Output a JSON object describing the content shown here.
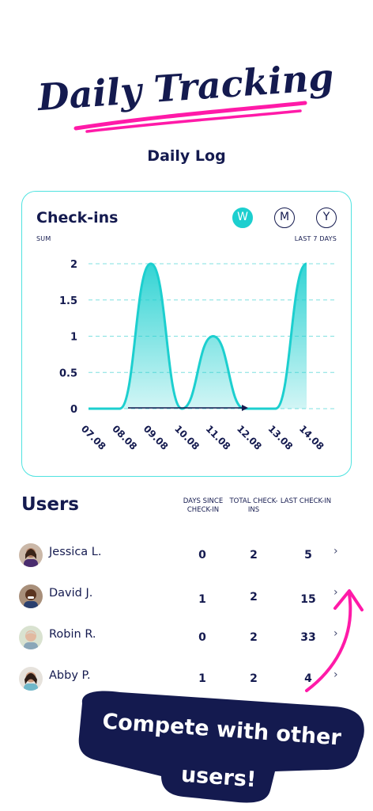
{
  "headline": "Daily Tracking",
  "subtitle": "Daily Log",
  "chart_card": {
    "title": "Check-ins",
    "periods": [
      "W",
      "M",
      "Y"
    ],
    "active_period": "W",
    "left_caption": "SUM",
    "right_caption": "LAST 7 DAYS"
  },
  "chart_data": {
    "type": "area",
    "x": [
      "07.08",
      "08.08",
      "09.08",
      "10.08",
      "11.08",
      "12.08",
      "13.08",
      "14.08"
    ],
    "y": [
      0,
      0,
      2,
      0,
      1,
      0,
      0,
      2
    ],
    "y_ticks": [
      "0",
      "0.5",
      "1",
      "1.5",
      "2"
    ],
    "ylim": [
      0,
      2
    ],
    "grid": "dashed horizontal",
    "colors": {
      "line": "#1ccfcf",
      "fill": "#8ee6e6",
      "grid": "#7fe0e0",
      "arrow": "#141a4f"
    }
  },
  "users": {
    "title": "Users",
    "columns": [
      "DAYS SINCE CHECK-IN",
      "TOTAL CHECK-INS",
      "LAST CHECK-IN"
    ],
    "rows": [
      {
        "name": "Jessica L.",
        "days_since": "0",
        "total": "2",
        "last": "5"
      },
      {
        "name": "David J.",
        "days_since": "1",
        "total": "2",
        "last": "15"
      },
      {
        "name": "Robin R.",
        "days_since": "0",
        "total": "2",
        "last": "33"
      },
      {
        "name": "Abby P.",
        "days_since": "1",
        "total": "2",
        "last": "4"
      }
    ]
  },
  "callout": {
    "line1": "Compete with other",
    "line2": "users!"
  },
  "colors": {
    "navy": "#141a4f",
    "teal": "#1ccfcf",
    "magenta": "#ff1aa8"
  }
}
